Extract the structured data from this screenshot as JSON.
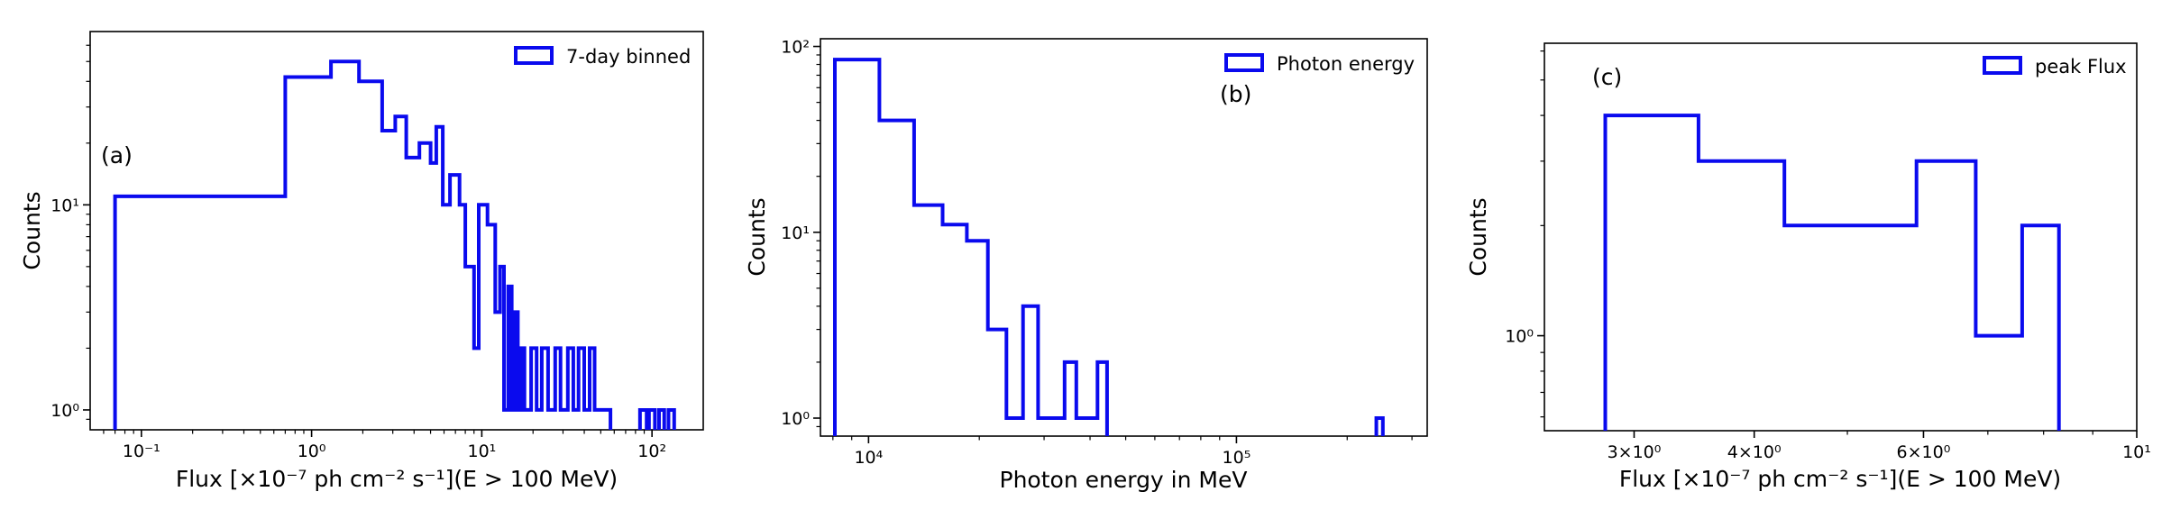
{
  "chart_data": [
    {
      "type": "histogram",
      "panel_label": "(a)",
      "xlabel": "Flux [×10⁻⁷ ph cm⁻² s⁻¹](E > 100 MeV)",
      "ylabel": "Counts",
      "xscale": "log",
      "yscale": "log",
      "xlim": [
        0.05,
        200
      ],
      "ylim": [
        0.8,
        70
      ],
      "xticks": [
        0.1,
        1,
        10,
        100
      ],
      "xtick_labels": [
        "10⁻¹",
        "10⁰",
        "10¹",
        "10²"
      ],
      "yticks": [
        1,
        10
      ],
      "ytick_labels": [
        "10⁰",
        "10¹"
      ],
      "legend": {
        "label": "7-day binned",
        "position": "upper right"
      },
      "color": "#0a0aee",
      "steps": [
        [
          0.07,
          11
        ],
        [
          0.7,
          42
        ],
        [
          1.3,
          50
        ],
        [
          1.9,
          40
        ],
        [
          2.6,
          23
        ],
        [
          3.1,
          27
        ],
        [
          3.6,
          17
        ],
        [
          4.3,
          20
        ],
        [
          5.0,
          16
        ],
        [
          5.4,
          24
        ],
        [
          5.9,
          10
        ],
        [
          6.5,
          14
        ],
        [
          7.4,
          10
        ],
        [
          8.0,
          5
        ],
        [
          9.0,
          2
        ],
        [
          9.6,
          10
        ],
        [
          10.8,
          8
        ],
        [
          12.0,
          3
        ],
        [
          12.8,
          5
        ],
        [
          13.5,
          1
        ],
        [
          14.3,
          4
        ],
        [
          15.0,
          1
        ],
        [
          15.7,
          3
        ],
        [
          16.3,
          1
        ],
        [
          17.0,
          2
        ],
        [
          17.8,
          1
        ],
        [
          19.5,
          2
        ],
        [
          21.0,
          1
        ],
        [
          22.5,
          2
        ],
        [
          24.5,
          1
        ],
        [
          27.0,
          2
        ],
        [
          29.0,
          1
        ],
        [
          32.0,
          2
        ],
        [
          34.5,
          1
        ],
        [
          37.0,
          2
        ],
        [
          40.0,
          1
        ],
        [
          43.0,
          2
        ],
        [
          46.0,
          1
        ],
        [
          52.0,
          1
        ]
      ],
      "step_end": 57.0,
      "extra_bins": [
        [
          85,
          93
        ],
        [
          96,
          104
        ],
        [
          110,
          118
        ],
        [
          125,
          135
        ]
      ]
    },
    {
      "type": "histogram",
      "panel_label": "(b)",
      "xlabel": "Photon energy in MeV",
      "ylabel": "Counts",
      "xscale": "log",
      "yscale": "log",
      "xlim": [
        7400,
        330000
      ],
      "ylim": [
        0.8,
        110
      ],
      "xticks": [
        10000,
        100000
      ],
      "xtick_labels": [
        "10⁴",
        "10⁵"
      ],
      "yticks": [
        1,
        10,
        100
      ],
      "ytick_labels": [
        "10⁰",
        "10¹",
        "10²"
      ],
      "legend": {
        "label": "Photon energy",
        "position": "upper right"
      },
      "color": "#0a0aee",
      "steps": [
        [
          8100,
          85
        ],
        [
          10700,
          40
        ],
        [
          13300,
          14
        ],
        [
          15900,
          11
        ],
        [
          18500,
          9
        ],
        [
          21100,
          3
        ],
        [
          23700,
          1
        ],
        [
          26300,
          4
        ],
        [
          28900,
          1
        ],
        [
          34100,
          2
        ],
        [
          36700,
          1
        ],
        [
          41900,
          2
        ]
      ],
      "step_end": 44500,
      "extra_bins": [
        [
          240000,
          250000
        ]
      ]
    },
    {
      "type": "histogram",
      "panel_label": "(c)",
      "xlabel": "Flux [×10⁻⁷ ph cm⁻² s⁻¹](E > 100 MeV)",
      "ylabel": "Counts",
      "xscale": "log",
      "yscale": "log",
      "xlim": [
        2.42,
        10
      ],
      "ylim": [
        0.55,
        6.3
      ],
      "xticks": [
        3,
        4,
        6,
        10
      ],
      "xtick_labels": [
        "3×10⁰",
        "4×10⁰",
        "6×10⁰",
        "10¹"
      ],
      "yticks": [
        1
      ],
      "ytick_labels": [
        "10⁰"
      ],
      "legend": {
        "label": "peak Flux",
        "position": "upper right"
      },
      "color": "#0a0aee",
      "steps": [
        [
          2.8,
          4
        ],
        [
          3.5,
          3
        ],
        [
          4.3,
          2
        ],
        [
          5.9,
          3
        ],
        [
          6.8,
          1
        ],
        [
          7.6,
          2
        ]
      ],
      "step_end": 8.3,
      "extra_bins": []
    }
  ]
}
